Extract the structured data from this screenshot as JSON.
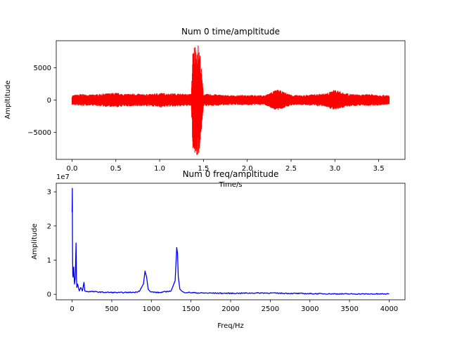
{
  "chart_data": [
    {
      "type": "line",
      "title": "Num 0 time/ampltitude",
      "xlabel": "Time/s",
      "ylabel": "Ampltitude",
      "xlim": [
        -0.18,
        3.8
      ],
      "ylim": [
        -9200,
        9200
      ],
      "xticks": [
        0.0,
        0.5,
        1.0,
        1.5,
        2.0,
        2.5,
        3.0,
        3.5
      ],
      "xtick_labels": [
        "0.0",
        "0.5",
        "1.0",
        "1.5",
        "2.0",
        "2.5",
        "3.0",
        "3.5"
      ],
      "yticks": [
        -5000,
        0,
        5000
      ],
      "ytick_labels": [
        "−5000",
        "0",
        "5000"
      ],
      "grid": false,
      "color": "#ff0000",
      "series": [
        {
          "x": [
            0.0,
            0.1,
            0.2,
            0.3,
            0.4,
            0.5,
            0.6,
            0.7,
            0.8,
            0.9,
            1.0,
            1.1,
            1.2,
            1.3,
            1.36,
            1.38,
            1.4,
            1.42,
            1.44,
            1.46,
            1.5,
            1.6,
            1.7,
            1.8,
            1.9,
            2.0,
            2.1,
            2.2,
            2.3,
            2.35,
            2.4,
            2.5,
            2.6,
            2.7,
            2.8,
            2.9,
            3.0,
            3.05,
            3.1,
            3.2,
            3.3,
            3.4,
            3.5,
            3.62
          ],
          "amp": [
            700,
            900,
            800,
            900,
            1000,
            1100,
            900,
            1000,
            900,
            900,
            1100,
            1000,
            1000,
            900,
            900,
            8000,
            8700,
            8500,
            8600,
            7500,
            900,
            900,
            800,
            700,
            700,
            800,
            700,
            700,
            1400,
            1600,
            1300,
            800,
            700,
            800,
            900,
            1000,
            1600,
            1400,
            1100,
            900,
            800,
            900,
            800,
            700
          ]
        }
      ]
    },
    {
      "type": "line",
      "title": "Num 0 freq/ampltitude",
      "xlabel": "Freq/Hz",
      "ylabel": "Amplitude",
      "offset_label": "1e7",
      "xlim": [
        -200,
        4200
      ],
      "ylim": [
        -0.16,
        3.25
      ],
      "xticks": [
        0,
        500,
        1000,
        1500,
        2000,
        2500,
        3000,
        3500,
        4000
      ],
      "xtick_labels": [
        "0",
        "500",
        "1000",
        "1500",
        "2000",
        "2500",
        "3000",
        "3500",
        "4000"
      ],
      "yticks": [
        0,
        1,
        2,
        3
      ],
      "ytick_labels": [
        "0",
        "1",
        "2",
        "3"
      ],
      "grid": false,
      "color": "#0000ff",
      "series": [
        {
          "x": [
            0,
            3,
            5,
            8,
            12,
            20,
            30,
            40,
            50,
            55,
            60,
            70,
            90,
            110,
            130,
            150,
            160,
            180,
            250,
            400,
            600,
            800,
            850,
            900,
            920,
            940,
            960,
            990,
            1100,
            1250,
            1300,
            1320,
            1330,
            1340,
            1360,
            1400,
            1600,
            2000,
            2400,
            3000,
            3500,
            4000
          ],
          "y": [
            2.4,
            3.1,
            1.5,
            0.6,
            0.5,
            0.8,
            0.3,
            0.5,
            1.5,
            0.5,
            0.2,
            0.3,
            0.1,
            0.2,
            0.1,
            0.35,
            0.1,
            0.08,
            0.08,
            0.06,
            0.05,
            0.06,
            0.1,
            0.3,
            0.68,
            0.5,
            0.15,
            0.07,
            0.05,
            0.1,
            0.4,
            1.37,
            1.2,
            0.5,
            0.15,
            0.06,
            0.04,
            0.03,
            0.04,
            0.02,
            0.01,
            0.01
          ]
        }
      ]
    }
  ]
}
